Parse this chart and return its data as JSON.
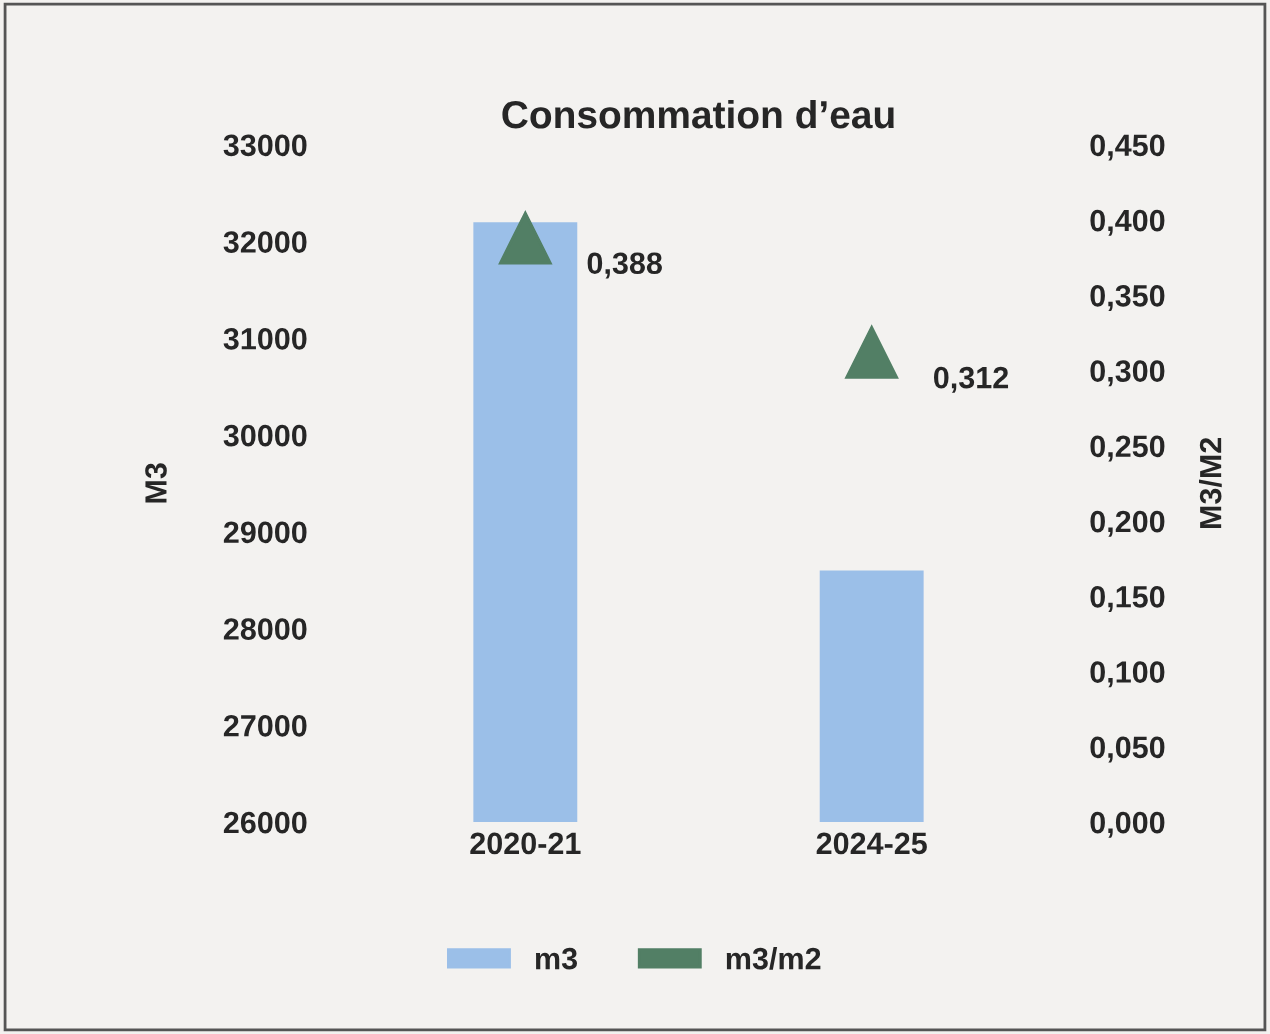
{
  "chart_data": {
    "type": "bar",
    "title": "Consommation d’eau",
    "ylabel": "M3",
    "y2label": "M3/M2",
    "categories": [
      "2020-21",
      "2024-25"
    ],
    "series": [
      {
        "name": "m3",
        "color": "#9bbfe8",
        "values": [
          32200,
          28600
        ]
      },
      {
        "name": "m3/m2",
        "type": "scatter",
        "axis": "y2",
        "marker": "triangle",
        "color": "#527f65",
        "values": [
          0.388,
          0.312
        ],
        "value_labels": [
          "0,388",
          "0,312"
        ]
      }
    ],
    "ylim": [
      26000,
      33000
    ],
    "yticks": [
      26000,
      27000,
      28000,
      29000,
      30000,
      31000,
      32000,
      33000
    ],
    "y2lim": [
      0,
      0.45
    ],
    "y2ticks": [
      {
        "value": 0,
        "label": "0,000"
      },
      {
        "value": 0.05,
        "label": "0,050"
      },
      {
        "value": 0.1,
        "label": "0,100"
      },
      {
        "value": 0.15,
        "label": "0,150"
      },
      {
        "value": 0.2,
        "label": "0,200"
      },
      {
        "value": 0.25,
        "label": "0,250"
      },
      {
        "value": 0.3,
        "label": "0,300"
      },
      {
        "value": 0.35,
        "label": "0,350"
      },
      {
        "value": 0.4,
        "label": "0,400"
      },
      {
        "value": 0.45,
        "label": "0,450"
      }
    ],
    "grid": false,
    "legend": "bottom"
  }
}
